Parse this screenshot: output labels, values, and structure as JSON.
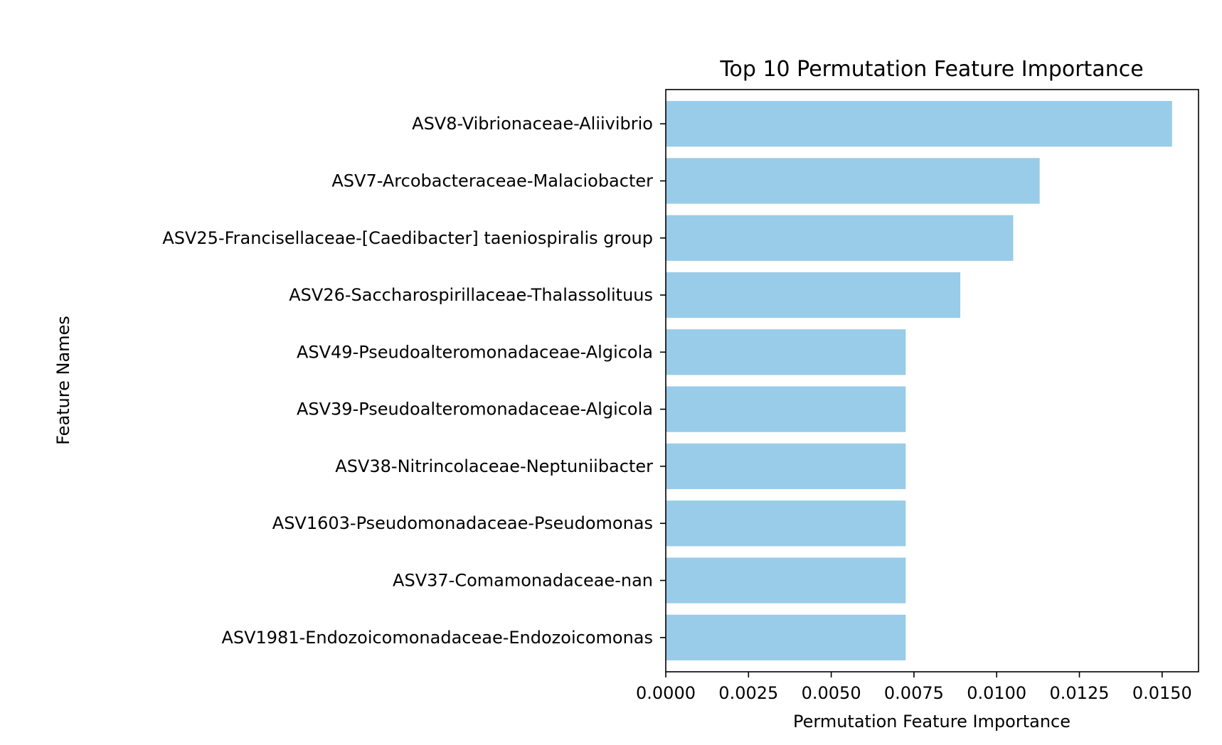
{
  "chart_data": {
    "type": "bar",
    "orientation": "horizontal",
    "title": "Top 10 Permutation Feature Importance",
    "xlabel": "Permutation Feature Importance",
    "ylabel": "Feature Names",
    "xlim": [
      0,
      0.0161
    ],
    "xticks": [
      "0.0000",
      "0.0025",
      "0.0050",
      "0.0075",
      "0.0100",
      "0.0125",
      "0.0150"
    ],
    "categories": [
      "ASV8-Vibrionaceae-Aliivibrio",
      "ASV7-Arcobacteraceae-Malaciobacter",
      "ASV25-Francisellaceae-[Caedibacter] taeniospiralis group",
      "ASV26-Saccharospirillaceae-Thalassolituus",
      "ASV49-Pseudoalteromonadaceae-Algicola",
      "ASV39-Pseudoalteromonadaceae-Algicola",
      "ASV38-Nitrincolaceae-Neptuniibacter",
      "ASV1603-Pseudomonadaceae-Pseudomonas",
      "ASV37-Comamonadaceae-nan",
      "ASV1981-Endozoicomonadaceae-Endozoicomonas"
    ],
    "values": [
      0.0153,
      0.0113,
      0.0105,
      0.0089,
      0.00725,
      0.00725,
      0.00725,
      0.00725,
      0.00725,
      0.00725
    ],
    "bar_color": "#99cce8",
    "grid": false,
    "legend": "none"
  }
}
